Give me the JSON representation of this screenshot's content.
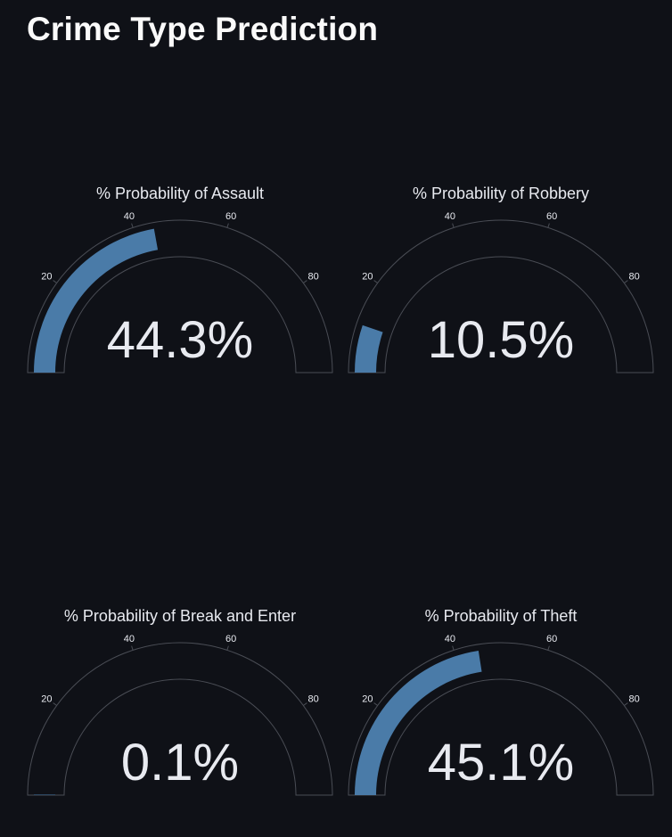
{
  "page": {
    "title": "Crime Type Prediction"
  },
  "colors": {
    "background": "#0f1117",
    "bar": "#4a7ba8",
    "outline": "#4a4d55",
    "text": "#e8eaf0"
  },
  "chart_data": [
    {
      "type": "gauge",
      "title": "% Probability of Assault",
      "value": 44.3,
      "display": "44.3%",
      "range": [
        0,
        100
      ],
      "tick_labels": [
        "20",
        "40",
        "60",
        "80"
      ]
    },
    {
      "type": "gauge",
      "title": "% Probability of Robbery",
      "value": 10.5,
      "display": "10.5%",
      "range": [
        0,
        100
      ],
      "tick_labels": [
        "20",
        "40",
        "60",
        "80"
      ]
    },
    {
      "type": "gauge",
      "title": "% Probability of Break and Enter",
      "value": 0.1,
      "display": "0.1%",
      "range": [
        0,
        100
      ],
      "tick_labels": [
        "20",
        "40",
        "60",
        "80"
      ]
    },
    {
      "type": "gauge",
      "title": "% Probability of Theft",
      "value": 45.1,
      "display": "45.1%",
      "range": [
        0,
        100
      ],
      "tick_labels": [
        "20",
        "40",
        "60",
        "80"
      ]
    }
  ]
}
